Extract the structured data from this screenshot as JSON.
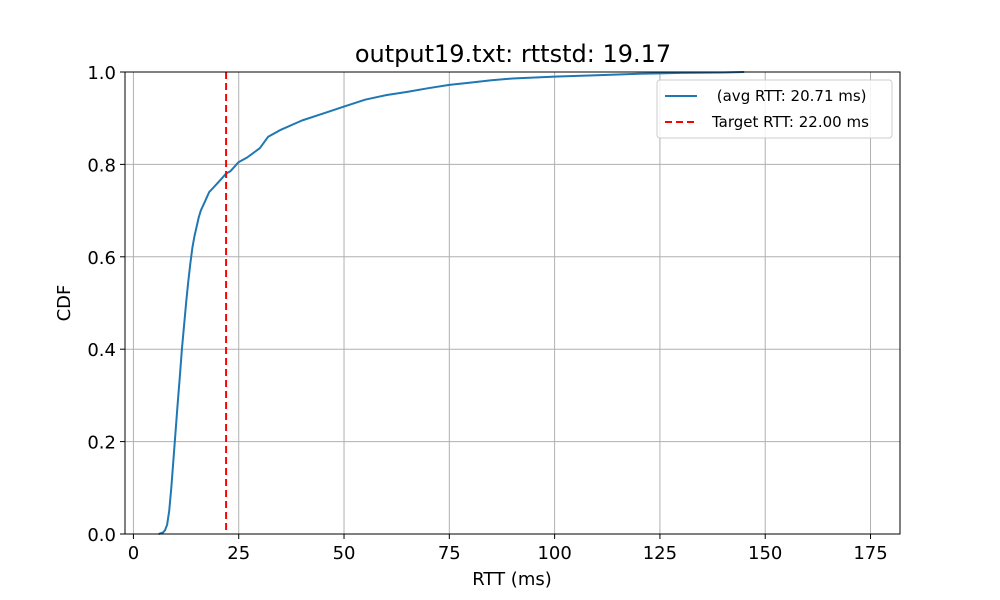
{
  "chart_data": {
    "type": "line",
    "title": "output19.txt: rttstd: 19.17",
    "xlabel": "RTT (ms)",
    "ylabel": "CDF",
    "xlim": [
      -2,
      182
    ],
    "ylim": [
      0,
      1
    ],
    "xticks": [
      0,
      25,
      50,
      75,
      100,
      125,
      150,
      175
    ],
    "yticks": [
      0.0,
      0.2,
      0.4,
      0.6,
      0.8,
      1.0
    ],
    "xtick_labels": [
      "0",
      "25",
      "50",
      "75",
      "100",
      "125",
      "150",
      "175"
    ],
    "ytick_labels": [
      "0.0",
      "0.2",
      "0.4",
      "0.6",
      "0.8",
      "1.0"
    ],
    "grid": true,
    "legend_position": "top-right",
    "series": [
      {
        "name": " (avg RTT: 20.71 ms)",
        "color": "#1f77b4",
        "style": "solid",
        "x": [
          6,
          7,
          7.5,
          8,
          8.5,
          9,
          9.5,
          10,
          10.5,
          11,
          11.5,
          12,
          12.5,
          13,
          13.5,
          14,
          14.5,
          15,
          15.5,
          16,
          16.5,
          17,
          17.5,
          18,
          19,
          20,
          21,
          22,
          23,
          24,
          25,
          27,
          30,
          32,
          35,
          40,
          45,
          50,
          55,
          60,
          65,
          70,
          75,
          80,
          85,
          90,
          100,
          110,
          120,
          125,
          130,
          140,
          145
        ],
        "y": [
          0.0,
          0.003,
          0.008,
          0.02,
          0.05,
          0.1,
          0.16,
          0.22,
          0.28,
          0.34,
          0.4,
          0.45,
          0.5,
          0.545,
          0.585,
          0.62,
          0.645,
          0.665,
          0.685,
          0.7,
          0.71,
          0.72,
          0.73,
          0.74,
          0.75,
          0.76,
          0.77,
          0.78,
          0.785,
          0.795,
          0.805,
          0.815,
          0.835,
          0.86,
          0.875,
          0.895,
          0.91,
          0.925,
          0.94,
          0.95,
          0.957,
          0.965,
          0.972,
          0.977,
          0.982,
          0.986,
          0.99,
          0.993,
          0.996,
          0.997,
          0.998,
          0.999,
          1.0
        ]
      },
      {
        "name": "Target RTT: 22.00 ms",
        "color": "#ff0000",
        "style": "dashed",
        "vline_x": 22
      }
    ]
  }
}
